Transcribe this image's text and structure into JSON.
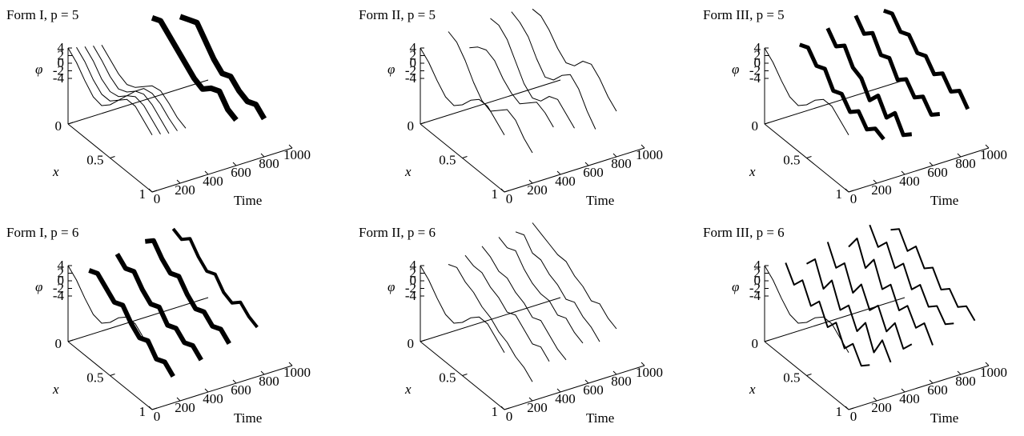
{
  "chart_data": [
    {
      "type": "line3d",
      "title": "Form I, p = 5",
      "zlabel": "φ",
      "xlabel": "x",
      "tlabel": "Time",
      "x": [
        0,
        0.1,
        0.2,
        0.3,
        0.4,
        0.5,
        0.6,
        0.7,
        0.8,
        0.9,
        1
      ],
      "xlim": [
        0,
        1
      ],
      "xticks": [
        0,
        0.5,
        1
      ],
      "tlim": [
        0,
        1000
      ],
      "tticks": [
        0,
        200,
        400,
        600,
        800,
        1000
      ],
      "zlim": [
        -16,
        4
      ],
      "zticks": [
        4,
        2,
        0,
        -2,
        -4
      ],
      "color": "#000000",
      "series": [
        {
          "t": 0,
          "line_width": 1,
          "values": [
            4,
            2,
            -1,
            -3.5,
            -4,
            -2,
            1,
            3,
            3,
            1,
            -1
          ]
        },
        {
          "t": 60,
          "line_width": 1,
          "values": [
            3.5,
            1.5,
            -1.5,
            -3.5,
            -3.5,
            -1.5,
            1.5,
            3,
            2.5,
            0.5,
            -1.5
          ]
        },
        {
          "t": 120,
          "line_width": 1,
          "values": [
            3,
            1,
            -2,
            -3.5,
            -3,
            -1,
            2,
            3,
            2,
            0,
            -2
          ]
        },
        {
          "t": 180,
          "line_width": 1,
          "values": [
            2.5,
            0.5,
            -2,
            -3.5,
            -2.5,
            -0.5,
            2,
            2.5,
            1.5,
            -0.5,
            -2
          ]
        },
        {
          "t": 240,
          "line_width": 1,
          "values": [
            2,
            0,
            -2,
            -3,
            -2,
            0,
            2,
            2.5,
            1,
            -1,
            -2
          ]
        },
        {
          "t": 600,
          "line_width": 7,
          "values": [
            5,
            6,
            4,
            2,
            0,
            -2,
            -3,
            -1,
            0,
            -3,
            -4
          ]
        },
        {
          "t": 800,
          "line_width": 7,
          "values": [
            3,
            4,
            5,
            2,
            -1,
            -3,
            -2,
            -4,
            -5,
            -4,
            -6
          ]
        }
      ]
    },
    {
      "type": "line3d",
      "title": "Form II, p = 5",
      "zlabel": "φ",
      "xlabel": "x",
      "tlabel": "Time",
      "x": [
        0,
        0.1,
        0.2,
        0.3,
        0.4,
        0.5,
        0.6,
        0.7,
        0.8,
        0.9,
        1
      ],
      "xlim": [
        0,
        1
      ],
      "xticks": [
        0,
        0.5,
        1
      ],
      "tlim": [
        0,
        1000
      ],
      "tticks": [
        0,
        200,
        400,
        600,
        800,
        1000
      ],
      "zlim": [
        -16,
        4
      ],
      "zticks": [
        4,
        2,
        0,
        -2,
        -4
      ],
      "color": "#000000",
      "series": [
        {
          "t": 0,
          "line_width": 1,
          "values": [
            4,
            2,
            -1,
            -3.5,
            -4,
            -2,
            1,
            3,
            3,
            1,
            -1
          ]
        },
        {
          "t": 200,
          "line_width": 1,
          "values": [
            6,
            5,
            2,
            -2,
            -5,
            -6,
            -4,
            -2,
            -3,
            -6,
            -8
          ]
        },
        {
          "t": 350,
          "line_width": 1,
          "values": [
            0,
            2,
            3,
            2,
            -1,
            -3,
            -4,
            -2,
            0,
            -1,
            -3
          ]
        },
        {
          "t": 500,
          "line_width": 1,
          "values": [
            6,
            6,
            4,
            0,
            -4,
            -6,
            -5,
            -2,
            -1,
            -3,
            -5
          ]
        },
        {
          "t": 650,
          "line_width": 1,
          "values": [
            6,
            5,
            3,
            -1,
            -4,
            -3,
            0,
            2,
            0,
            -4,
            -7
          ]
        },
        {
          "t": 800,
          "line_width": 1,
          "values": [
            5,
            5,
            3,
            0,
            -2,
            -1,
            2,
            3,
            1,
            -2,
            -4
          ]
        }
      ]
    },
    {
      "type": "line3d",
      "title": "Form III, p = 5",
      "zlabel": "φ",
      "xlabel": "x",
      "tlabel": "Time",
      "x": [
        0,
        0.1,
        0.2,
        0.3,
        0.4,
        0.5,
        0.6,
        0.7,
        0.8,
        0.9,
        1
      ],
      "xlim": [
        0,
        1
      ],
      "xticks": [
        0,
        0.5,
        1
      ],
      "tlim": [
        0,
        1000
      ],
      "tticks": [
        0,
        200,
        400,
        600,
        800,
        1000
      ],
      "zlim": [
        -16,
        4
      ],
      "zticks": [
        4,
        2,
        0,
        -2,
        -4
      ],
      "color": "#000000",
      "series": [
        {
          "t": 0,
          "line_width": 1,
          "values": [
            4,
            2,
            -1,
            -3.5,
            -4,
            -2,
            1,
            3,
            3,
            1,
            -1
          ]
        },
        {
          "t": 250,
          "line_width": 5,
          "values": [
            2,
            3,
            0,
            1,
            -3,
            -2,
            -5,
            -3,
            -6,
            -4,
            -5
          ]
        },
        {
          "t": 450,
          "line_width": 5,
          "values": [
            4,
            1,
            3,
            -1,
            -2,
            -6,
            -3,
            -7,
            -4,
            -8,
            -6
          ]
        },
        {
          "t": 650,
          "line_width": 5,
          "values": [
            5,
            2,
            4,
            0,
            1,
            -3,
            -1,
            -4,
            -2,
            -5,
            -3
          ]
        },
        {
          "t": 850,
          "line_width": 5,
          "values": [
            4,
            5,
            2,
            3,
            0,
            1,
            -2,
            0,
            -3,
            -1,
            -4
          ]
        }
      ]
    },
    {
      "type": "line3d",
      "title": "Form I, p = 6",
      "zlabel": "φ",
      "xlabel": "x",
      "tlabel": "Time",
      "x": [
        0,
        0.1,
        0.2,
        0.3,
        0.4,
        0.5,
        0.6,
        0.7,
        0.8,
        0.9,
        1
      ],
      "xlim": [
        0,
        1
      ],
      "xticks": [
        0,
        0.5,
        1
      ],
      "tlim": [
        0,
        1000
      ],
      "tticks": [
        0,
        200,
        400,
        600,
        800,
        1000
      ],
      "zlim": [
        -16,
        4
      ],
      "zticks": [
        4,
        2,
        0,
        -2,
        -4
      ],
      "color": "#000000",
      "series": [
        {
          "t": 0,
          "line_width": 1,
          "values": [
            4,
            2,
            -1,
            -3.5,
            -4,
            -2,
            1,
            3,
            3,
            1,
            -1
          ]
        },
        {
          "t": 150,
          "line_width": 6,
          "values": [
            1,
            2,
            0,
            -2,
            -1,
            -4,
            -6,
            -5,
            -8,
            -7,
            -9
          ]
        },
        {
          "t": 350,
          "line_width": 6,
          "values": [
            3,
            1,
            2,
            -1,
            -3,
            -2,
            -5,
            -4,
            -6,
            -5,
            -7
          ]
        },
        {
          "t": 550,
          "line_width": 6,
          "values": [
            4,
            6,
            3,
            1,
            2,
            -1,
            -3,
            -2,
            -4,
            -3,
            -5
          ]
        },
        {
          "t": 750,
          "line_width": 4,
          "values": [
            5,
            4,
            6,
            3,
            1,
            2,
            -1,
            -2,
            0,
            -2,
            -3
          ]
        }
      ]
    },
    {
      "type": "line3d",
      "title": "Form II, p = 6",
      "zlabel": "φ",
      "xlabel": "x",
      "tlabel": "Time",
      "x": [
        0,
        0.1,
        0.2,
        0.3,
        0.4,
        0.5,
        0.6,
        0.7,
        0.8,
        0.9,
        1
      ],
      "xlim": [
        0,
        1
      ],
      "xticks": [
        0,
        0.5,
        1
      ],
      "tlim": [
        0,
        1000
      ],
      "tticks": [
        0,
        200,
        400,
        600,
        800,
        1000
      ],
      "zlim": [
        -16,
        4
      ],
      "zticks": [
        4,
        2,
        0,
        -2,
        -4
      ],
      "color": "#000000",
      "series": [
        {
          "t": 0,
          "line_width": 1,
          "values": [
            4,
            2,
            -1,
            -3.5,
            -4,
            -2,
            1,
            3,
            3,
            1,
            -1
          ]
        },
        {
          "t": 200,
          "line_width": 1,
          "values": [
            2,
            3,
            1,
            0,
            -2,
            -3,
            -5,
            -6,
            -8,
            -9,
            -11
          ]
        },
        {
          "t": 320,
          "line_width": 1,
          "values": [
            3,
            2,
            2,
            0,
            -1,
            -3,
            -2,
            -4,
            -6,
            -5,
            -7
          ]
        },
        {
          "t": 440,
          "line_width": 1,
          "values": [
            4,
            3,
            1,
            1,
            -1,
            -2,
            -4,
            -3,
            -5,
            -7,
            -8
          ]
        },
        {
          "t": 560,
          "line_width": 1,
          "values": [
            5,
            4,
            5,
            2,
            0,
            -1,
            -1,
            -3,
            -2,
            -4,
            -5
          ]
        },
        {
          "t": 680,
          "line_width": 1,
          "values": [
            5,
            6,
            3,
            3,
            1,
            0,
            -2,
            -1,
            -3,
            -4,
            -6
          ]
        },
        {
          "t": 800,
          "line_width": 1,
          "values": [
            6,
            5,
            4,
            3,
            3,
            1,
            0,
            -2,
            -1,
            -3,
            -4
          ]
        }
      ]
    },
    {
      "type": "line3d",
      "title": "Form III, p = 6",
      "zlabel": "φ",
      "xlabel": "x",
      "tlabel": "Time",
      "x": [
        0,
        0.1,
        0.2,
        0.3,
        0.4,
        0.5,
        0.6,
        0.7,
        0.8,
        0.9,
        1
      ],
      "xlim": [
        0,
        1
      ],
      "xticks": [
        0,
        0.5,
        1
      ],
      "tlim": [
        0,
        1000
      ],
      "tticks": [
        0,
        200,
        400,
        600,
        800,
        1000
      ],
      "zlim": [
        -16,
        4
      ],
      "zticks": [
        4,
        2,
        0,
        -2,
        -4
      ],
      "color": "#000000",
      "series": [
        {
          "t": 0,
          "line_width": 1,
          "values": [
            4,
            2,
            -1,
            -3.5,
            -4,
            -2,
            1,
            3,
            3,
            1,
            -1
          ]
        },
        {
          "t": 150,
          "line_width": 2,
          "values": [
            3,
            -1,
            2,
            -3,
            0,
            -5,
            -2,
            -7,
            -4,
            -8,
            -6
          ]
        },
        {
          "t": 300,
          "line_width": 2,
          "values": [
            1,
            4,
            -2,
            2,
            -4,
            -1,
            -6,
            -2,
            -8,
            -3,
            -7
          ]
        },
        {
          "t": 450,
          "line_width": 2,
          "values": [
            5,
            0,
            3,
            -3,
            1,
            -4,
            -1,
            -6,
            -2,
            -7,
            -4
          ]
        },
        {
          "t": 600,
          "line_width": 2,
          "values": [
            2,
            6,
            0,
            4,
            -2,
            1,
            -4,
            -1,
            -5,
            -2,
            -6
          ]
        },
        {
          "t": 750,
          "line_width": 2,
          "values": [
            6,
            2,
            5,
            0,
            3,
            -2,
            1,
            -3,
            -1,
            -4,
            -2
          ]
        },
        {
          "t": 900,
          "line_width": 2,
          "values": [
            3,
            5,
            1,
            4,
            0,
            2,
            -2,
            0,
            -3,
            -1,
            -3
          ]
        }
      ]
    }
  ]
}
